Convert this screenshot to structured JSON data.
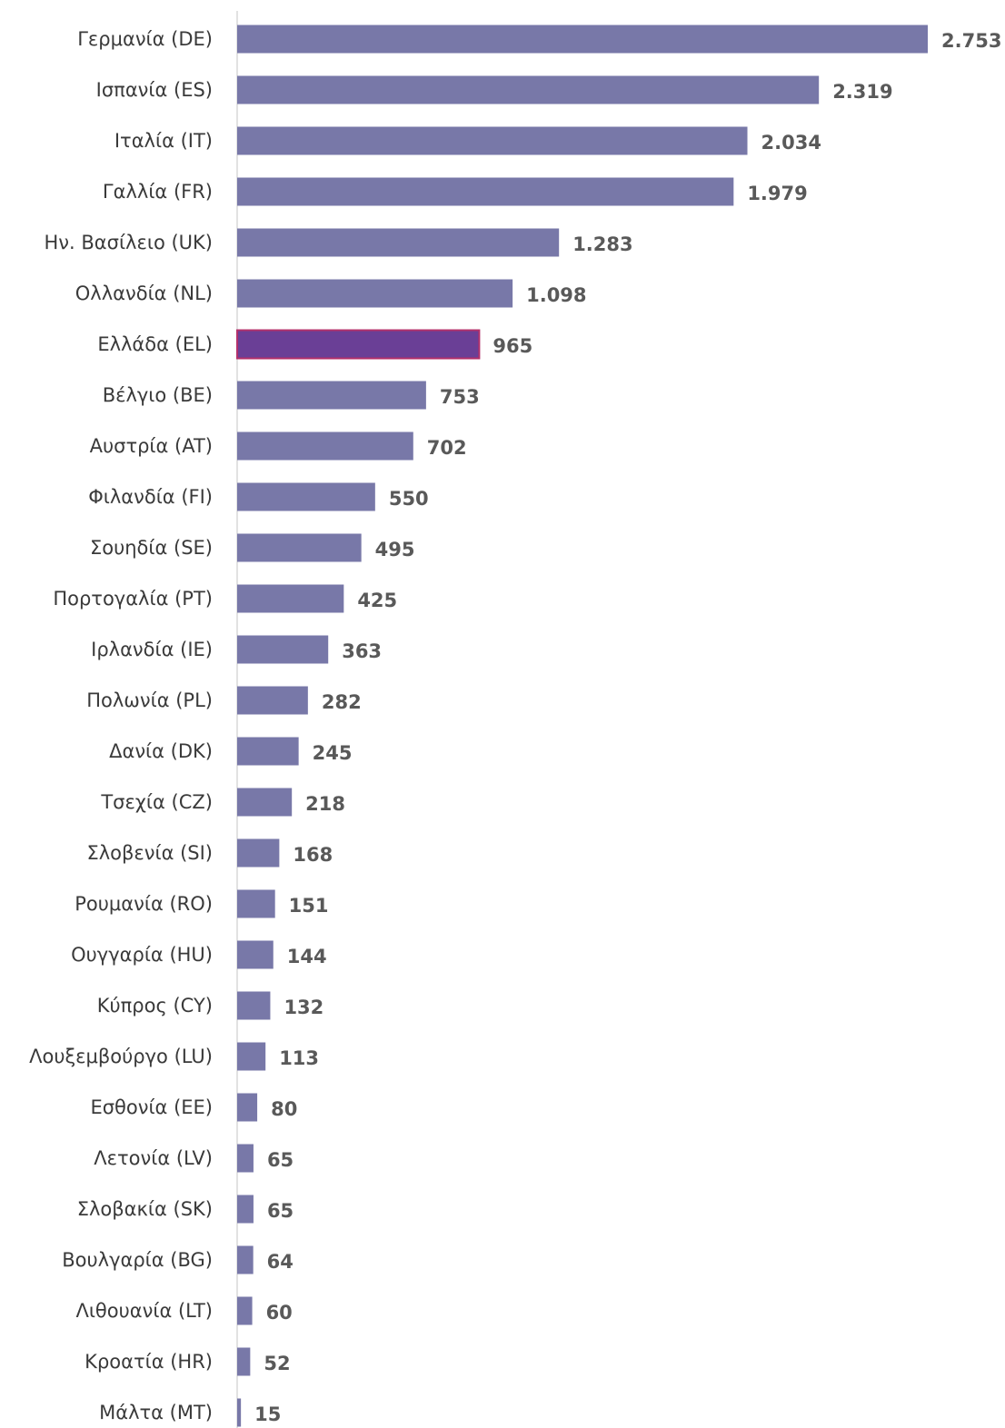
{
  "colors": {
    "bar": "#7878a8",
    "highlight_bar": "#6a3f96",
    "highlight_border": "#b3306b",
    "axis": "#d9d9d9",
    "category_text": "#3a3a3a",
    "value_text": "#595959",
    "background": "#ffffff"
  },
  "chart_data": {
    "type": "bar",
    "orientation": "horizontal",
    "title": "",
    "xlabel": "",
    "ylabel": "",
    "xlim": [
      0,
      2753
    ],
    "grid": false,
    "legend": "none",
    "highlight_category": "Ελλάδα (EL)",
    "categories": [
      "Γερμανία (DE)",
      "Ισπανία (ES)",
      "Ιταλία (IT)",
      "Γαλλία (FR)",
      "Ην. Βασίλειο (UK)",
      "Ολλανδία (NL)",
      "Ελλάδα (EL)",
      "Βέλγιο (BE)",
      "Αυστρία (AT)",
      "Φιλανδία (FI)",
      "Σουηδία (SE)",
      "Πορτογαλία (PT)",
      "Ιρλανδία (IE)",
      "Πολωνία (PL)",
      "Δανία (DK)",
      "Τσεχία (CZ)",
      "Σλοβενία (SI)",
      "Ρουμανία (RO)",
      "Ουγγαρία (HU)",
      "Κύπρος (CY)",
      "Λουξεμβούργο (LU)",
      "Εσθονία (EE)",
      "Λετονία (LV)",
      "Σλοβακία (SK)",
      "Βουλγαρία (BG)",
      "Λιθουανία (LT)",
      "Κροατία (HR)",
      "Μάλτα (MT)"
    ],
    "values": [
      2753,
      2319,
      2034,
      1979,
      1283,
      1098,
      965,
      753,
      702,
      550,
      495,
      425,
      363,
      282,
      245,
      218,
      168,
      151,
      144,
      132,
      113,
      80,
      65,
      65,
      64,
      60,
      52,
      15
    ],
    "value_labels": [
      "2.753",
      "2.319",
      "2.034",
      "1.979",
      "1.283",
      "1.098",
      "965",
      "753",
      "702",
      "550",
      "495",
      "425",
      "363",
      "282",
      "245",
      "218",
      "168",
      "151",
      "144",
      "132",
      "113",
      "80",
      "65",
      "65",
      "64",
      "60",
      "52",
      "15"
    ]
  }
}
